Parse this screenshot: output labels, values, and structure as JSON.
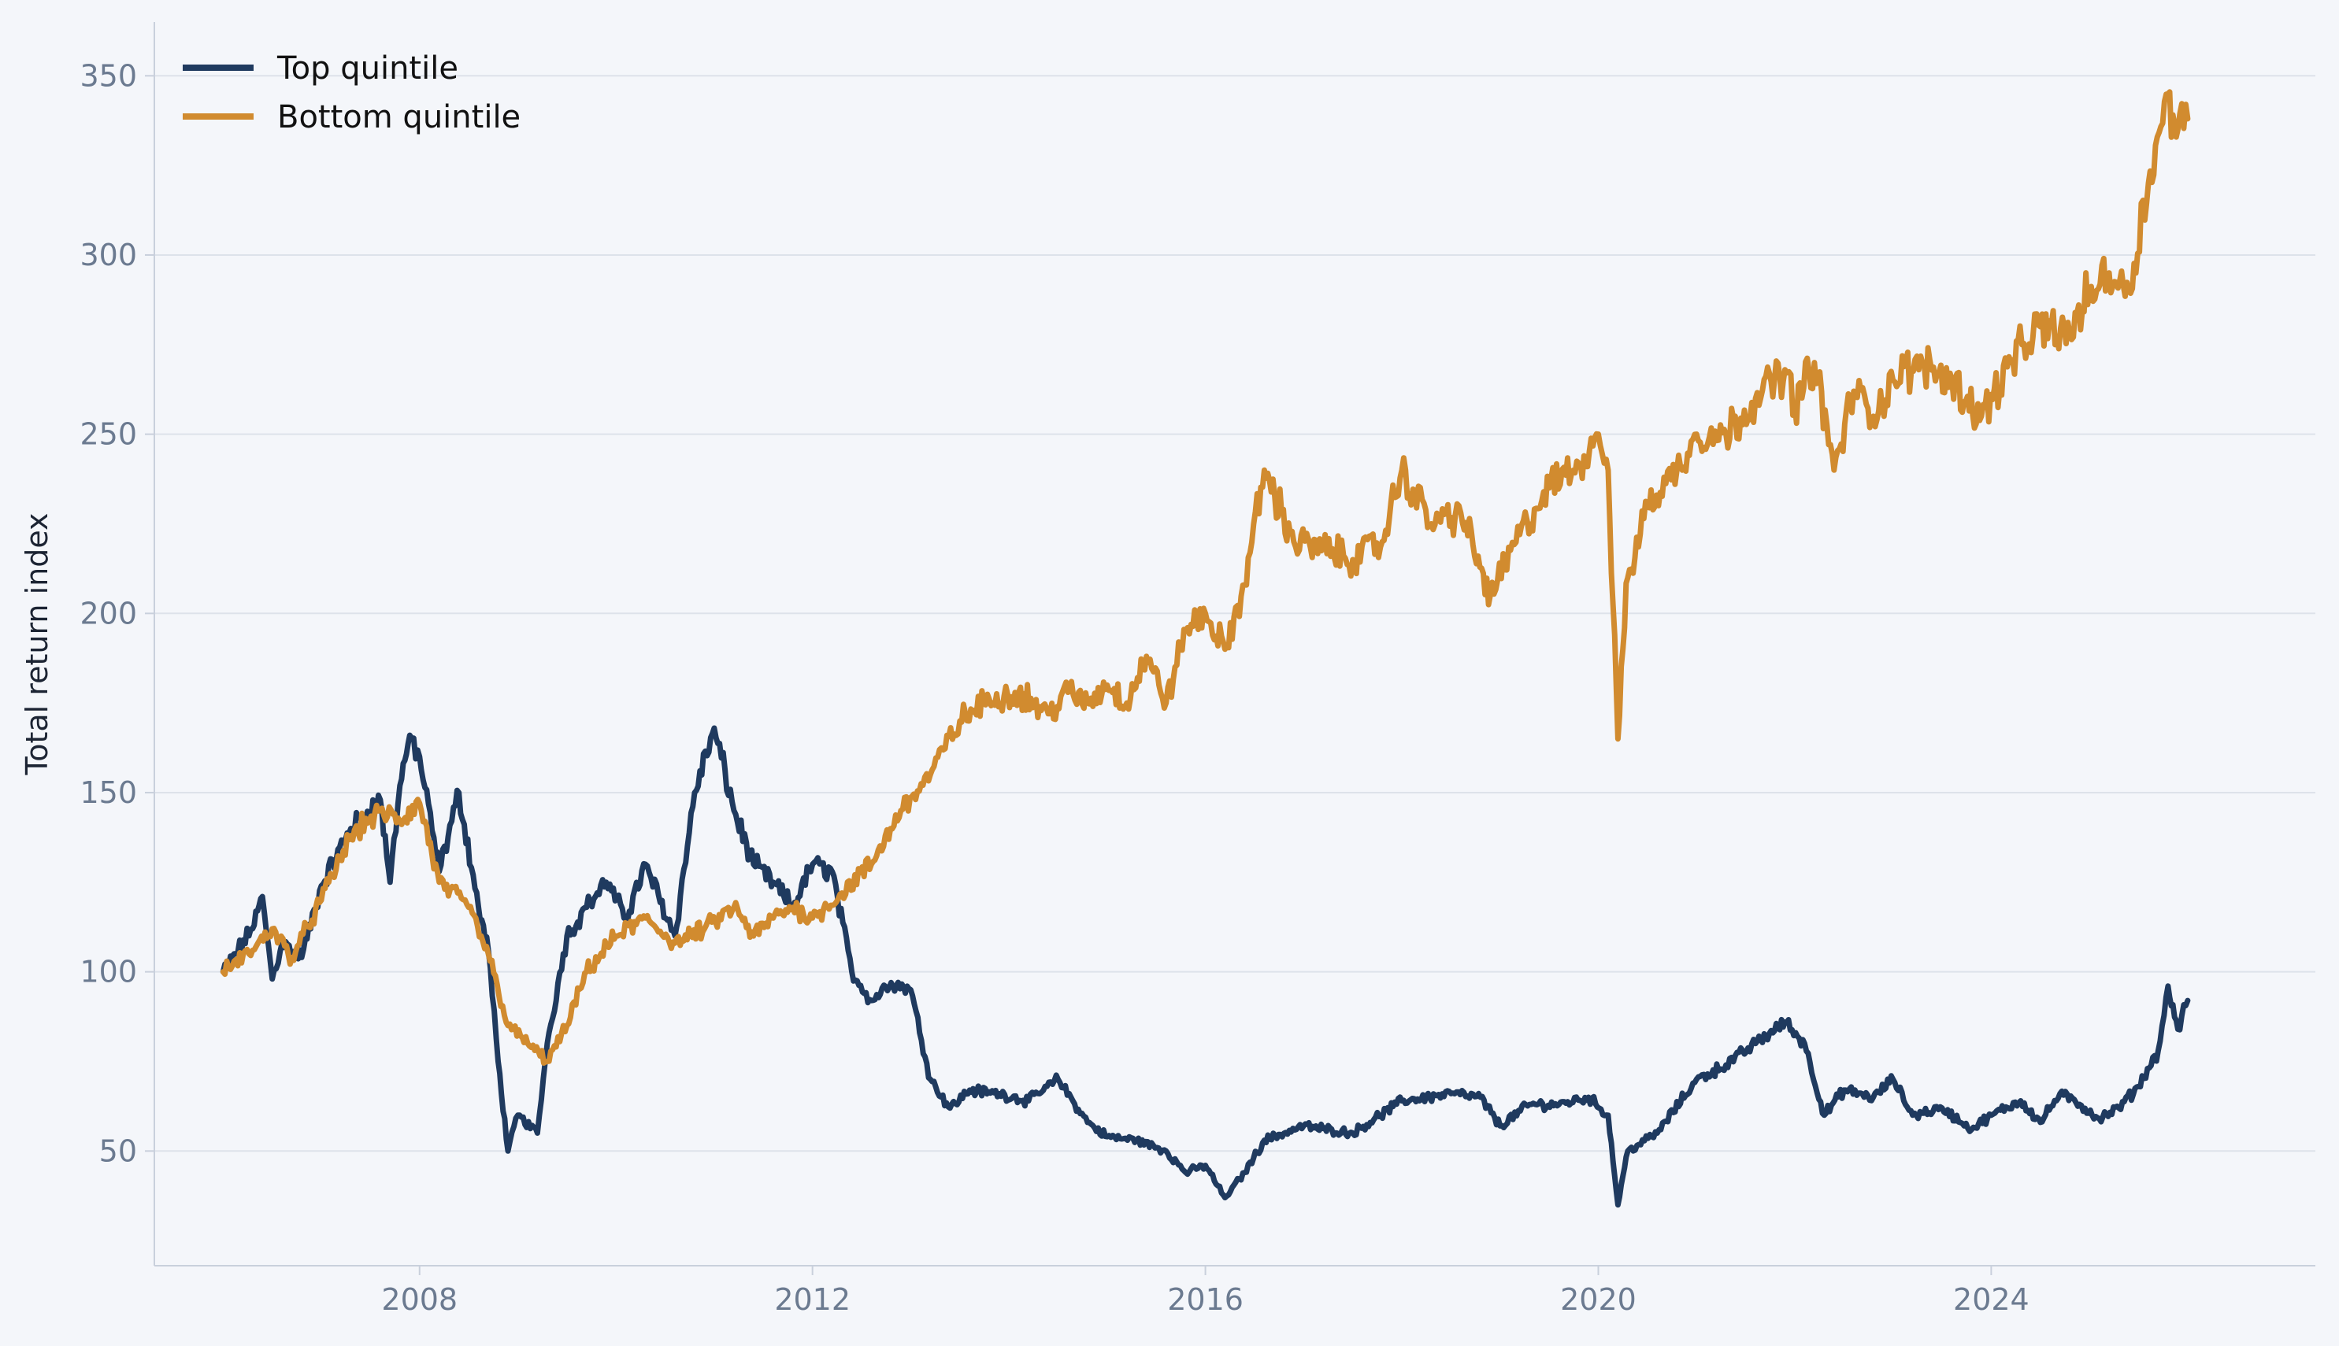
{
  "chart_data": {
    "type": "line",
    "title": "",
    "xlabel": "",
    "ylabel": "Total return index",
    "x_ticks": [
      "2008",
      "2012",
      "2016",
      "2020",
      "2024"
    ],
    "y_ticks": [
      50,
      100,
      150,
      200,
      250,
      300,
      350
    ],
    "xlim": [
      2005.3,
      2027.3
    ],
    "ylim": [
      18,
      365
    ],
    "grid": "horizontal",
    "legend_position": "top-left",
    "background_color": "#f4f6fa",
    "series": [
      {
        "name": "Top quintile",
        "color": "#1f3a5f",
        "x": [
          2006.0,
          2006.3,
          2006.4,
          2006.5,
          2006.6,
          2006.8,
          2007.0,
          2007.3,
          2007.6,
          2007.7,
          2007.8,
          2007.9,
          2008.0,
          2008.2,
          2008.4,
          2008.6,
          2008.7,
          2008.8,
          2008.9,
          2009.0,
          2009.2,
          2009.3,
          2009.5,
          2009.7,
          2009.9,
          2010.1,
          2010.3,
          2010.6,
          2010.8,
          2011.0,
          2011.2,
          2011.4,
          2011.6,
          2011.8,
          2012.0,
          2012.2,
          2012.4,
          2012.6,
          2012.8,
          2013.0,
          2013.2,
          2013.4,
          2013.6,
          2013.9,
          2014.2,
          2014.5,
          2014.8,
          2015.0,
          2015.3,
          2015.6,
          2015.8,
          2016.0,
          2016.2,
          2016.4,
          2016.6,
          2017.0,
          2017.5,
          2018.0,
          2018.5,
          2018.8,
          2019.0,
          2019.3,
          2019.6,
          2019.9,
          2020.1,
          2020.2,
          2020.25,
          2020.3,
          2020.6,
          2021.0,
          2021.3,
          2021.6,
          2021.9,
          2022.1,
          2022.3,
          2022.5,
          2022.8,
          2023.0,
          2023.2,
          2023.5,
          2023.8,
          2024.0,
          2024.3,
          2024.5,
          2024.7,
          2024.9,
          2025.1,
          2025.3,
          2025.5,
          2025.7,
          2025.8,
          2025.9,
          2026.0
        ],
        "y": [
          100,
          112,
          121,
          98,
          108,
          104,
          124,
          140,
          148,
          125,
          152,
          166,
          160,
          128,
          150,
          118,
          106,
          75,
          50,
          60,
          55,
          80,
          110,
          118,
          125,
          115,
          130,
          110,
          150,
          168,
          145,
          130,
          125,
          118,
          130,
          128,
          100,
          92,
          97,
          95,
          70,
          62,
          67,
          66,
          64,
          70,
          58,
          54,
          53,
          50,
          44,
          46,
          37,
          44,
          53,
          57,
          55,
          64,
          66,
          65,
          57,
          63,
          63,
          65,
          60,
          35,
          43,
          50,
          55,
          70,
          74,
          80,
          86,
          80,
          60,
          67,
          65,
          70,
          60,
          62,
          56,
          60,
          64,
          58,
          66,
          63,
          59,
          62,
          68,
          78,
          96,
          84,
          92
        ]
      },
      {
        "name": "Bottom quintile",
        "color": "#d18b2f",
        "x": [
          2006.0,
          2006.3,
          2006.5,
          2006.7,
          2007.0,
          2007.3,
          2007.6,
          2007.8,
          2008.0,
          2008.2,
          2008.5,
          2008.7,
          2008.9,
          2009.1,
          2009.3,
          2009.5,
          2009.7,
          2010.0,
          2010.3,
          2010.6,
          2010.9,
          2011.2,
          2011.4,
          2011.6,
          2011.8,
          2012.0,
          2012.3,
          2012.6,
          2012.9,
          2013.2,
          2013.5,
          2013.8,
          2014.1,
          2014.4,
          2014.6,
          2014.8,
          2015.0,
          2015.2,
          2015.4,
          2015.6,
          2015.8,
          2016.0,
          2016.2,
          2016.4,
          2016.6,
          2016.9,
          2017.2,
          2017.5,
          2017.8,
          2018.0,
          2018.3,
          2018.6,
          2018.9,
          2019.2,
          2019.5,
          2019.8,
          2020.0,
          2020.1,
          2020.2,
          2020.25,
          2020.3,
          2020.5,
          2020.8,
          2021.0,
          2021.3,
          2021.6,
          2021.9,
          2022.0,
          2022.2,
          2022.4,
          2022.6,
          2022.8,
          2023.0,
          2023.3,
          2023.6,
          2023.9,
          2024.2,
          2024.5,
          2024.8,
          2025.0,
          2025.2,
          2025.4,
          2025.6,
          2025.8,
          2025.9,
          2026.0
        ],
        "y": [
          100,
          106,
          112,
          104,
          120,
          138,
          145,
          142,
          147,
          125,
          118,
          105,
          85,
          80,
          75,
          85,
          100,
          110,
          115,
          108,
          112,
          118,
          110,
          115,
          118,
          115,
          122,
          130,
          145,
          155,
          170,
          176,
          178,
          172,
          178,
          175,
          180,
          175,
          188,
          175,
          195,
          200,
          190,
          208,
          240,
          220,
          218,
          215,
          220,
          240,
          225,
          228,
          205,
          222,
          235,
          242,
          250,
          240,
          165,
          190,
          210,
          230,
          240,
          250,
          250,
          260,
          268,
          258,
          270,
          240,
          262,
          255,
          265,
          270,
          265,
          255,
          270,
          280,
          278,
          290,
          295,
          290,
          320,
          345,
          335,
          338
        ]
      }
    ]
  }
}
